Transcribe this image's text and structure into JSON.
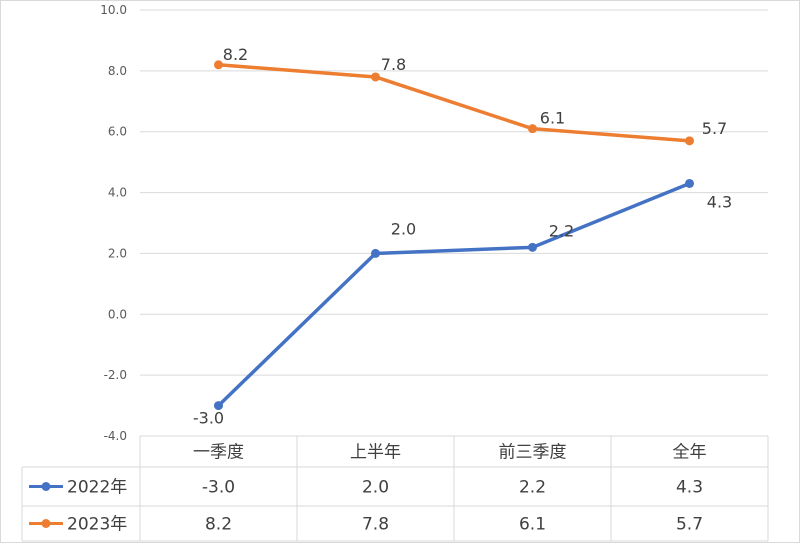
{
  "chart_data": {
    "type": "line",
    "categories": [
      "一季度",
      "上半年",
      "前三季度",
      "全年"
    ],
    "series": [
      {
        "name": "2022年",
        "values": [
          -3.0,
          2.0,
          2.2,
          4.3
        ],
        "labels": [
          "-3.0",
          "2.0",
          "2.2",
          "4.3"
        ],
        "color": "#4472C4"
      },
      {
        "name": "2023年",
        "values": [
          8.2,
          7.8,
          6.1,
          5.7
        ],
        "labels": [
          "8.2",
          "7.8",
          "6.1",
          "5.7"
        ],
        "color": "#ED7D31"
      }
    ],
    "ylim": [
      -4.0,
      10.0
    ],
    "yticks": [
      "-4.0",
      "-2.0",
      "0.0",
      "2.0",
      "4.0",
      "6.0",
      "8.0",
      "10.0"
    ],
    "ytick_values": [
      -4,
      -2,
      0,
      2,
      4,
      6,
      8,
      10
    ],
    "grid": true,
    "legend": "data-table",
    "data_table": true
  }
}
